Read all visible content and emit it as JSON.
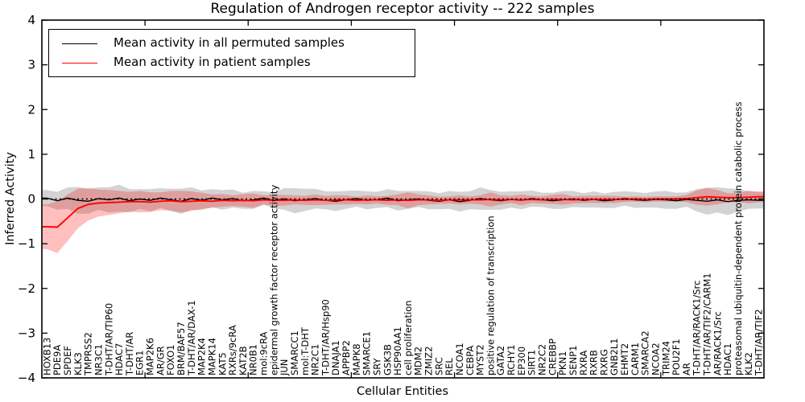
{
  "title": "Regulation of Androgen receptor activity -- 222 samples",
  "legend": {
    "items": [
      {
        "label": "Mean activity in all permuted samples",
        "color": "#000000"
      },
      {
        "label": "Mean activity in patient samples",
        "color": "#ff0000"
      }
    ]
  },
  "axes": {
    "x_label": "Cellular Entities",
    "y_label": "Inferred Activity",
    "y_tick_labels": [
      "−4",
      "−3",
      "−2",
      "−1",
      "0",
      "1",
      "2",
      "3",
      "4"
    ]
  },
  "colors": {
    "patient_line": "#ff0000",
    "permuted_line": "#000000",
    "patient_band": "rgba(255,0,0,0.25)",
    "permuted_band": "rgba(128,128,128,0.35)",
    "zero_line": "#000000"
  },
  "chart_data": {
    "type": "line",
    "title": "Regulation of Androgen receptor activity -- 222 samples",
    "xlabel": "Cellular Entities",
    "ylabel": "Inferred Activity",
    "ylim": [
      -4,
      4
    ],
    "yticks": [
      -4,
      -3,
      -2,
      -1,
      0,
      1,
      2,
      3,
      4
    ],
    "grid": false,
    "legend_position": "upper left",
    "reference_line": {
      "y": 0,
      "style": "dashed",
      "color": "#000000"
    },
    "categories": [
      "HOXB13",
      "PDE9A",
      "SPDEF",
      "KLK3",
      "TMPRSS2",
      "NR3C1",
      "T-DHT/AR/TIP60",
      "HDAC7",
      "T-DHT/AR",
      "EGR1",
      "MAP2K6",
      "AR/GR",
      "FOXO1",
      "BRM/BAF57",
      "T-DHT/AR/DAX-1",
      "MAP2K4",
      "MAPK14",
      "KAT5",
      "RXRs/9cRA",
      "KAT2B",
      "NR0B1",
      "mol:9cRA",
      "epidermal growth factor receptor activity",
      "JUN",
      "SMARCC1",
      "mol:T-DHT",
      "NR2C1",
      "T-DHT/AR/Hsp90",
      "DNAJA1",
      "APPBP2",
      "MAPK8",
      "SMARCE1",
      "SRY",
      "GSK3B",
      "HSP90AA1",
      "cell proliferation",
      "MDM2",
      "ZMIZ2",
      "SRC",
      "REL",
      "NCOA1",
      "CEBPA",
      "MYST2",
      "positive regulation of transcription",
      "GATA2",
      "RCHY1",
      "EP300",
      "SIRT1",
      "NR2C2",
      "CREBBP",
      "PKN1",
      "SENP1",
      "RXRA",
      "RXRB",
      "RXRG",
      "GNB2L1",
      "EHMT2",
      "CARM1",
      "SMARCA2",
      "NCOA2",
      "TRIM24",
      "POU2F1",
      "AR",
      "T-DHT/AR/RACK1/Src",
      "T-DHT/AR/TIF2/CARM1",
      "AR/RACK1/Src",
      "HDAC1",
      "proteasomal ubiquitin-dependent protein catabolic process",
      "KLK2",
      "T-DHT/AR/TIF2"
    ],
    "series": [
      {
        "name": "Mean activity in all permuted samples",
        "color": "#000000",
        "values": [
          0.02,
          -0.04,
          0.02,
          -0.03,
          -0.05,
          0.01,
          -0.02,
          0.02,
          -0.04,
          0.0,
          -0.03,
          0.02,
          -0.02,
          -0.05,
          0.01,
          -0.03,
          0.02,
          -0.02,
          0.01,
          -0.04,
          -0.02,
          0.02,
          -0.03,
          0.0,
          -0.04,
          -0.02,
          0.01,
          -0.03,
          -0.05,
          -0.02,
          0.01,
          -0.03,
          -0.02,
          0.02,
          -0.04,
          -0.02,
          0.0,
          -0.03,
          -0.05,
          -0.02,
          -0.06,
          -0.03,
          0.01,
          -0.02,
          -0.04,
          -0.01,
          -0.03,
          0.01,
          -0.02,
          -0.04,
          -0.02,
          0.0,
          -0.03,
          -0.01,
          -0.04,
          -0.02,
          0.01,
          -0.02,
          -0.03,
          -0.01,
          -0.02,
          -0.04,
          -0.01,
          -0.03,
          -0.05,
          -0.02,
          -0.06,
          -0.03,
          -0.02,
          -0.03
        ],
        "std": [
          0.18,
          0.2,
          0.24,
          0.3,
          0.28,
          0.25,
          0.28,
          0.3,
          0.26,
          0.22,
          0.25,
          0.22,
          0.25,
          0.28,
          0.25,
          0.22,
          0.2,
          0.22,
          0.2,
          0.18,
          0.2,
          0.15,
          0.18,
          0.24,
          0.28,
          0.25,
          0.22,
          0.2,
          0.22,
          0.2,
          0.18,
          0.2,
          0.18,
          0.2,
          0.22,
          0.2,
          0.18,
          0.2,
          0.18,
          0.2,
          0.22,
          0.2,
          0.25,
          0.22,
          0.2,
          0.18,
          0.2,
          0.18,
          0.16,
          0.18,
          0.2,
          0.18,
          0.16,
          0.18,
          0.16,
          0.18,
          0.16,
          0.18,
          0.16,
          0.18,
          0.2,
          0.18,
          0.16,
          0.25,
          0.3,
          0.28,
          0.3,
          0.25,
          0.2,
          0.18
        ]
      },
      {
        "name": "Mean activity in patient samples",
        "color": "#ff0000",
        "values": [
          -0.62,
          -0.63,
          -0.42,
          -0.21,
          -0.12,
          -0.09,
          -0.08,
          -0.07,
          -0.06,
          -0.06,
          -0.07,
          -0.05,
          -0.04,
          -0.06,
          -0.05,
          -0.04,
          -0.05,
          -0.03,
          -0.04,
          -0.03,
          -0.04,
          -0.02,
          -0.03,
          -0.03,
          -0.02,
          -0.03,
          -0.02,
          -0.03,
          -0.02,
          -0.02,
          -0.03,
          -0.02,
          -0.02,
          -0.03,
          -0.02,
          -0.03,
          -0.02,
          -0.02,
          -0.03,
          -0.02,
          -0.02,
          -0.02,
          -0.02,
          -0.01,
          -0.02,
          -0.01,
          -0.02,
          -0.01,
          -0.02,
          -0.01,
          -0.01,
          -0.02,
          -0.01,
          -0.01,
          -0.01,
          -0.01,
          -0.01,
          0.0,
          -0.01,
          0.0,
          0.0,
          0.0,
          0.01,
          0.03,
          0.05,
          0.04,
          0.03,
          0.03,
          0.04,
          0.05
        ],
        "std": [
          0.5,
          0.58,
          0.52,
          0.44,
          0.36,
          0.3,
          0.28,
          0.25,
          0.22,
          0.24,
          0.22,
          0.2,
          0.22,
          0.24,
          0.22,
          0.18,
          0.15,
          0.14,
          0.12,
          0.14,
          0.16,
          0.1,
          0.12,
          0.12,
          0.1,
          0.1,
          0.12,
          0.1,
          0.1,
          0.1,
          0.08,
          0.1,
          0.08,
          0.1,
          0.12,
          0.18,
          0.12,
          0.1,
          0.08,
          0.08,
          0.1,
          0.08,
          0.1,
          0.16,
          0.1,
          0.08,
          0.12,
          0.08,
          0.08,
          0.1,
          0.12,
          0.08,
          0.08,
          0.08,
          0.08,
          0.08,
          0.06,
          0.06,
          0.06,
          0.06,
          0.06,
          0.06,
          0.08,
          0.16,
          0.2,
          0.16,
          0.1,
          0.1,
          0.14,
          0.12
        ]
      }
    ]
  }
}
